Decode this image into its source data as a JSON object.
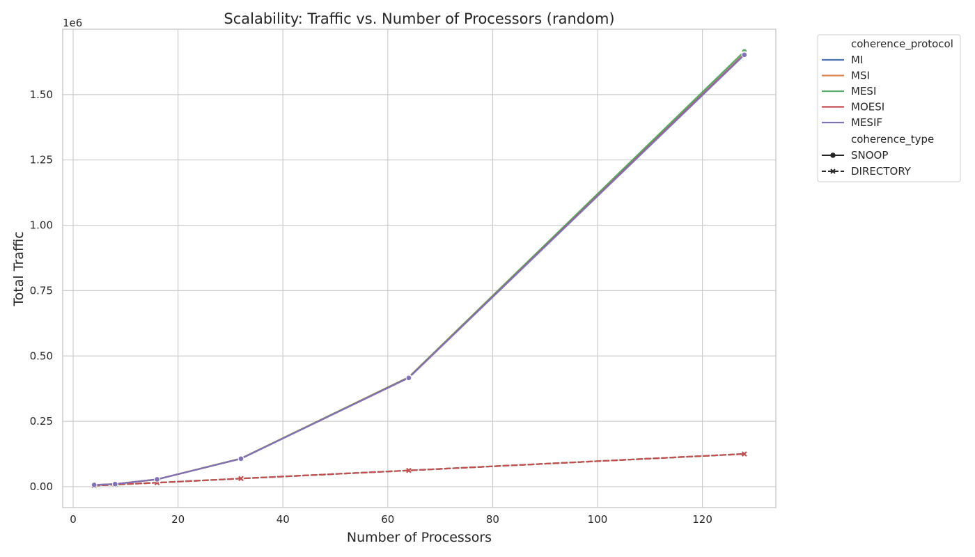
{
  "chart_data": {
    "type": "line",
    "title": "Scalability: Traffic vs. Number of Processors (random)",
    "xlabel": "Number of Processors",
    "ylabel": "Total Traffic",
    "y_offset_label": "1e6",
    "xlim": [
      -2,
      134
    ],
    "ylim": [
      -0.08,
      1.75
    ],
    "y_scale_factor": 1000000,
    "xticks": [
      0,
      20,
      40,
      60,
      80,
      100,
      120
    ],
    "xtick_labels": [
      "0",
      "20",
      "40",
      "60",
      "80",
      "100",
      "120"
    ],
    "yticks": [
      0,
      0.25,
      0.5,
      0.75,
      1.0,
      1.25,
      1.5
    ],
    "ytick_labels": [
      "0.00",
      "0.25",
      "0.50",
      "0.75",
      "1.00",
      "1.25",
      "1.50"
    ],
    "grid": true,
    "legend_position": "outside-top-right",
    "x": [
      4,
      8,
      16,
      32,
      64,
      128
    ],
    "series": [
      {
        "name": "MI",
        "coherence_type": "SNOOP",
        "color": "#4c72b0",
        "values": [
          0.0065,
          0.01,
          0.028,
          0.107,
          0.418,
          1.655
        ]
      },
      {
        "name": "MSI",
        "coherence_type": "SNOOP",
        "color": "#dd8452",
        "values": [
          0.0065,
          0.01,
          0.028,
          0.108,
          0.419,
          1.665
        ]
      },
      {
        "name": "MESI",
        "coherence_type": "SNOOP",
        "color": "#55a868",
        "values": [
          0.0065,
          0.01,
          0.028,
          0.108,
          0.419,
          1.665
        ]
      },
      {
        "name": "MOESI",
        "coherence_type": "SNOOP",
        "color": "#c44e52",
        "values": [
          0.0065,
          0.01,
          0.028,
          0.107,
          0.417,
          1.655
        ]
      },
      {
        "name": "MESIF",
        "coherence_type": "SNOOP",
        "color": "#8172b3",
        "values": [
          0.0065,
          0.01,
          0.028,
          0.107,
          0.416,
          1.652
        ]
      },
      {
        "name": "MI",
        "coherence_type": "DIRECTORY",
        "color": "#4c72b0",
        "values": [
          0.004,
          0.008,
          0.015,
          0.031,
          0.062,
          0.125
        ]
      },
      {
        "name": "MSI",
        "coherence_type": "DIRECTORY",
        "color": "#dd8452",
        "values": [
          0.004,
          0.008,
          0.015,
          0.031,
          0.062,
          0.125
        ]
      },
      {
        "name": "MESI",
        "coherence_type": "DIRECTORY",
        "color": "#55a868",
        "values": [
          0.004,
          0.008,
          0.015,
          0.031,
          0.062,
          0.125
        ]
      },
      {
        "name": "MOESI",
        "coherence_type": "DIRECTORY",
        "color": "#c44e52",
        "values": [
          0.004,
          0.008,
          0.015,
          0.031,
          0.062,
          0.125
        ]
      }
    ],
    "legend": {
      "protocol_heading": "coherence_protocol",
      "protocols": [
        {
          "label": "MI",
          "color": "#4c72b0"
        },
        {
          "label": "MSI",
          "color": "#dd8452"
        },
        {
          "label": "MESI",
          "color": "#55a868"
        },
        {
          "label": "MOESI",
          "color": "#c44e52"
        },
        {
          "label": "MESIF",
          "color": "#8172b3"
        }
      ],
      "type_heading": "coherence_type",
      "types": [
        {
          "label": "SNOOP",
          "dash": "solid",
          "marker": "circle"
        },
        {
          "label": "DIRECTORY",
          "dash": "dashed",
          "marker": "x"
        }
      ]
    }
  }
}
